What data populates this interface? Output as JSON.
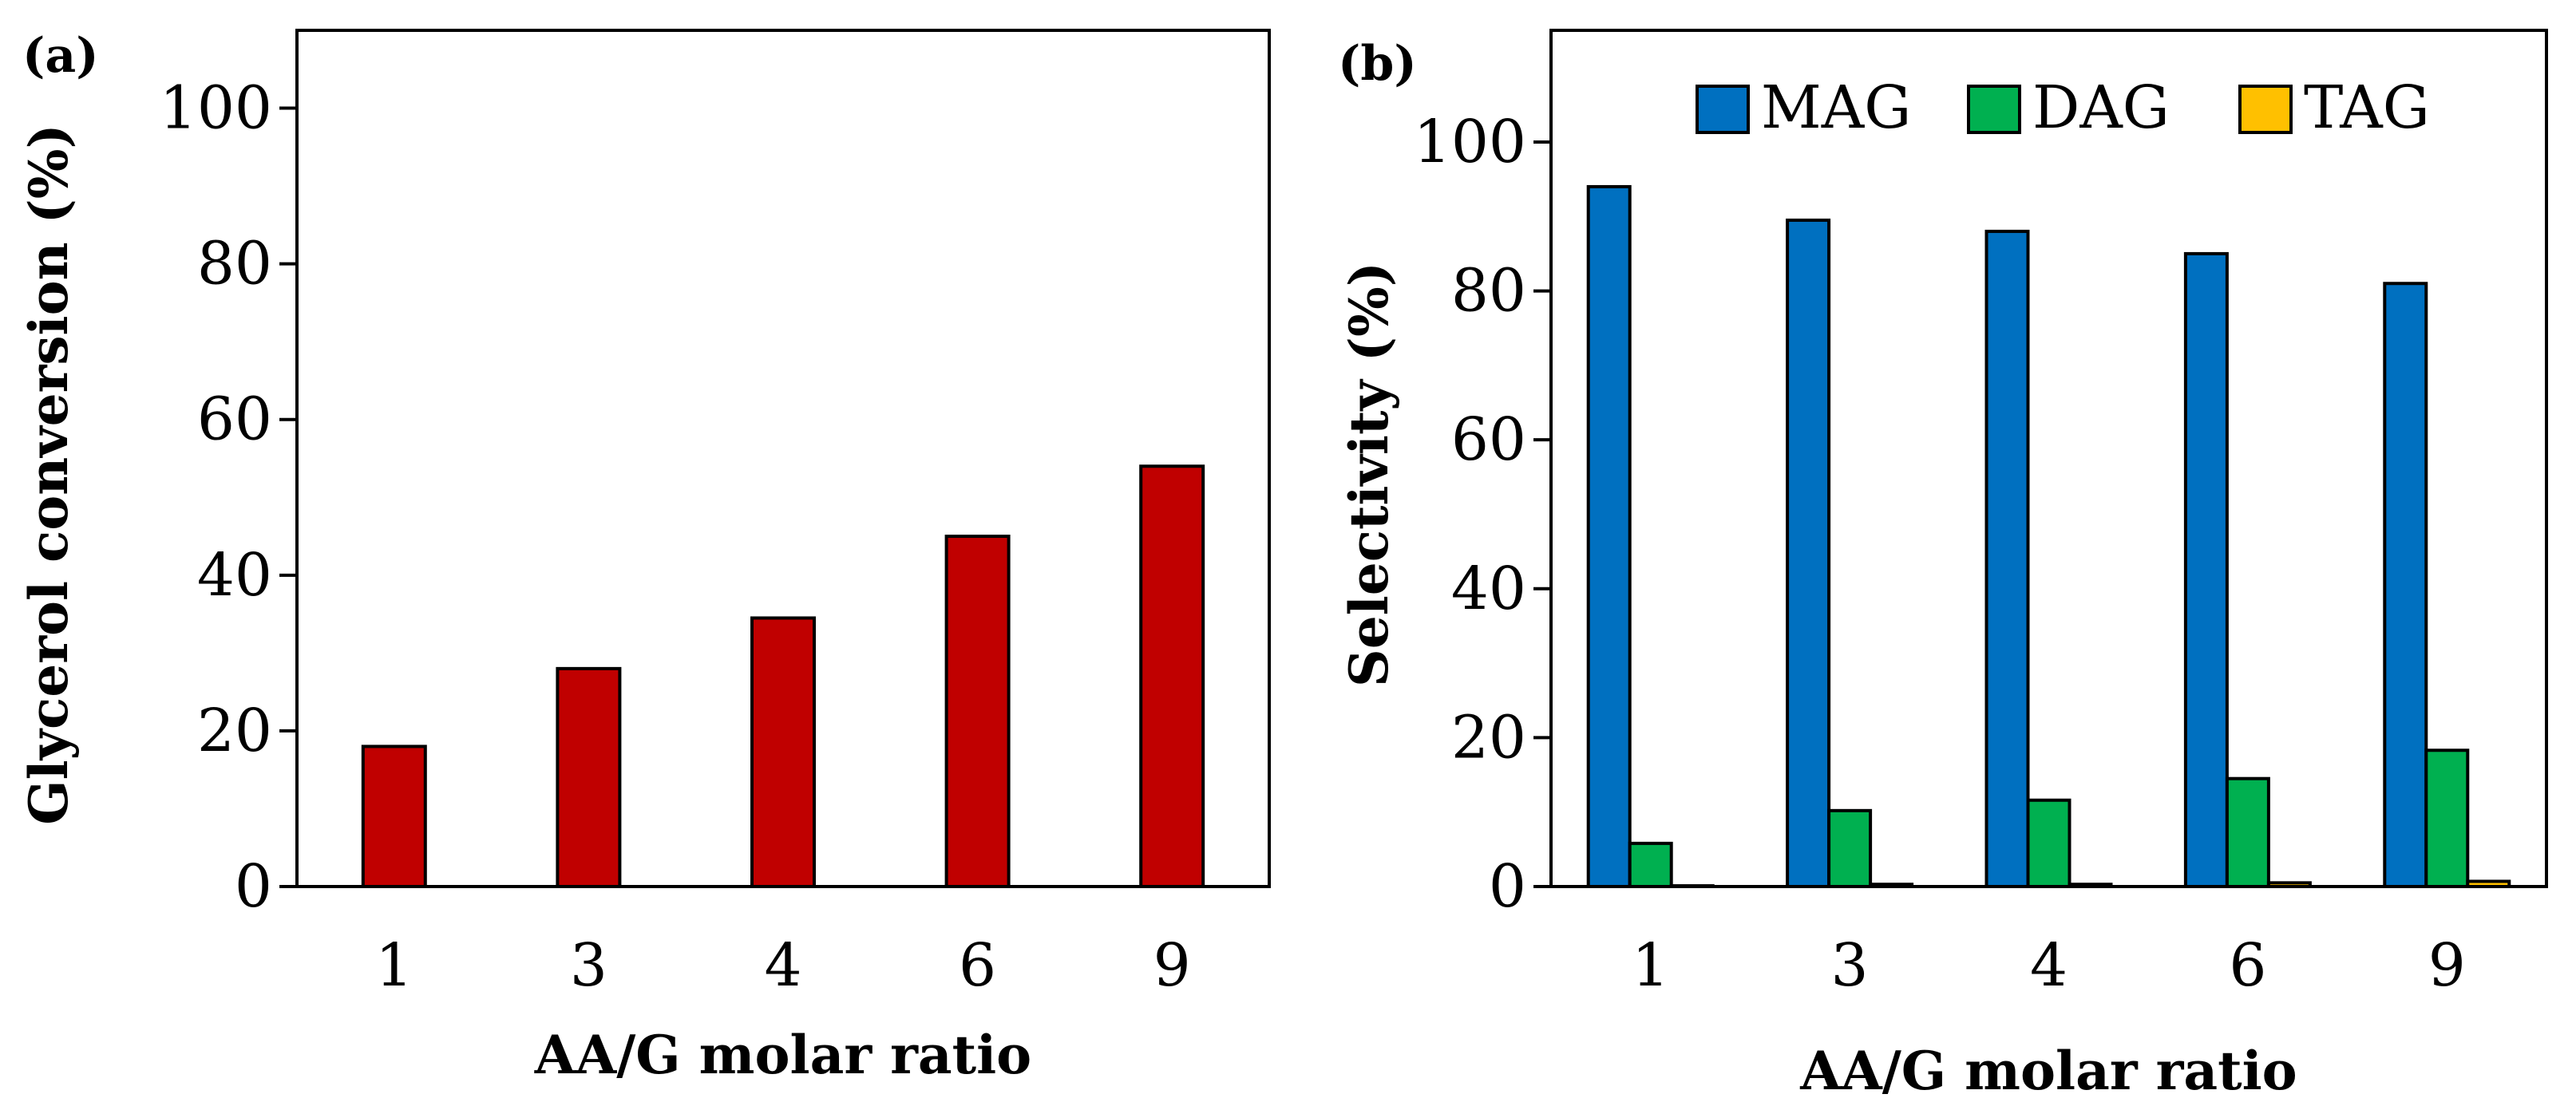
{
  "chart_data": [
    {
      "panel_label": "(a)",
      "type": "bar",
      "categories": [
        "1",
        "3",
        "4",
        "6",
        "9"
      ],
      "series": [
        {
          "values": [
            18,
            28,
            34.5,
            45,
            54
          ],
          "color": "#C00000"
        }
      ],
      "xlabel": "AA/G molar ratio",
      "ylabel": "Glycerol conversion (%)",
      "ylim": [
        0,
        110
      ],
      "yticks": [
        "0",
        "20",
        "40",
        "60",
        "80",
        "100"
      ],
      "grid": false,
      "legend": "none"
    },
    {
      "panel_label": "(b)",
      "type": "bar",
      "categories": [
        "1",
        "3",
        "4",
        "6",
        "9"
      ],
      "series": [
        {
          "name": "MAG",
          "values": [
            94,
            89.5,
            88,
            85,
            81
          ],
          "color": "#0070C0"
        },
        {
          "name": "DAG",
          "values": [
            5.8,
            10.2,
            11.6,
            14.5,
            18.3
          ],
          "color": "#00B050"
        },
        {
          "name": "TAG",
          "values": [
            0.1,
            0.3,
            0.3,
            0.5,
            0.7
          ],
          "color": "#FFC000"
        }
      ],
      "xlabel": "AA/G molar ratio",
      "ylabel": "Selectivity (%)",
      "ylim": [
        0,
        115
      ],
      "yticks": [
        "0",
        "20",
        "40",
        "60",
        "80",
        "100"
      ],
      "grid": false,
      "legend": "top"
    }
  ]
}
